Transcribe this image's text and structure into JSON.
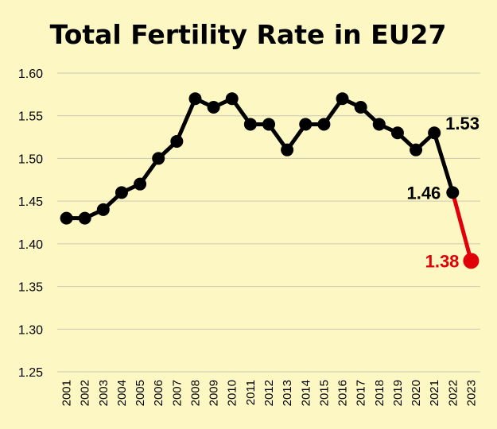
{
  "chart_data": {
    "type": "line",
    "title": "Total Fertility Rate in EU27",
    "xlabel": "",
    "ylabel": "",
    "ylim": [
      1.25,
      1.6
    ],
    "yticks": [
      "1.25",
      "1.30",
      "1.35",
      "1.40",
      "1.45",
      "1.50",
      "1.55",
      "1.60"
    ],
    "grid": true,
    "x": [
      "2001",
      "2002",
      "2003",
      "2004",
      "2005",
      "2006",
      "2007",
      "2008",
      "2009",
      "2010",
      "2011",
      "2012",
      "2013",
      "2014",
      "2015",
      "2016",
      "2017",
      "2018",
      "2019",
      "2020",
      "2021",
      "2022",
      "2023"
    ],
    "series": [
      {
        "color": "#000000",
        "x": [
          "2001",
          "2002",
          "2003",
          "2004",
          "2005",
          "2006",
          "2007",
          "2008",
          "2009",
          "2010",
          "2011",
          "2012",
          "2013",
          "2014",
          "2015",
          "2016",
          "2017",
          "2018",
          "2019",
          "2020",
          "2021",
          "2022"
        ],
        "values": [
          1.43,
          1.43,
          1.44,
          1.46,
          1.47,
          1.5,
          1.52,
          1.57,
          1.56,
          1.57,
          1.54,
          1.54,
          1.51,
          1.54,
          1.54,
          1.57,
          1.56,
          1.54,
          1.53,
          1.51,
          1.53,
          1.46
        ]
      },
      {
        "color": "#e0000a",
        "x": [
          "2022",
          "2023"
        ],
        "values": [
          1.46,
          1.38
        ]
      }
    ],
    "annotations": [
      {
        "year": "2021",
        "text": "1.53",
        "color": "#000000",
        "side": "right"
      },
      {
        "year": "2022",
        "text": "1.46",
        "color": "#000000",
        "side": "left"
      },
      {
        "year": "2023",
        "text": "1.38",
        "color": "#e0000a",
        "side": "left"
      }
    ]
  }
}
